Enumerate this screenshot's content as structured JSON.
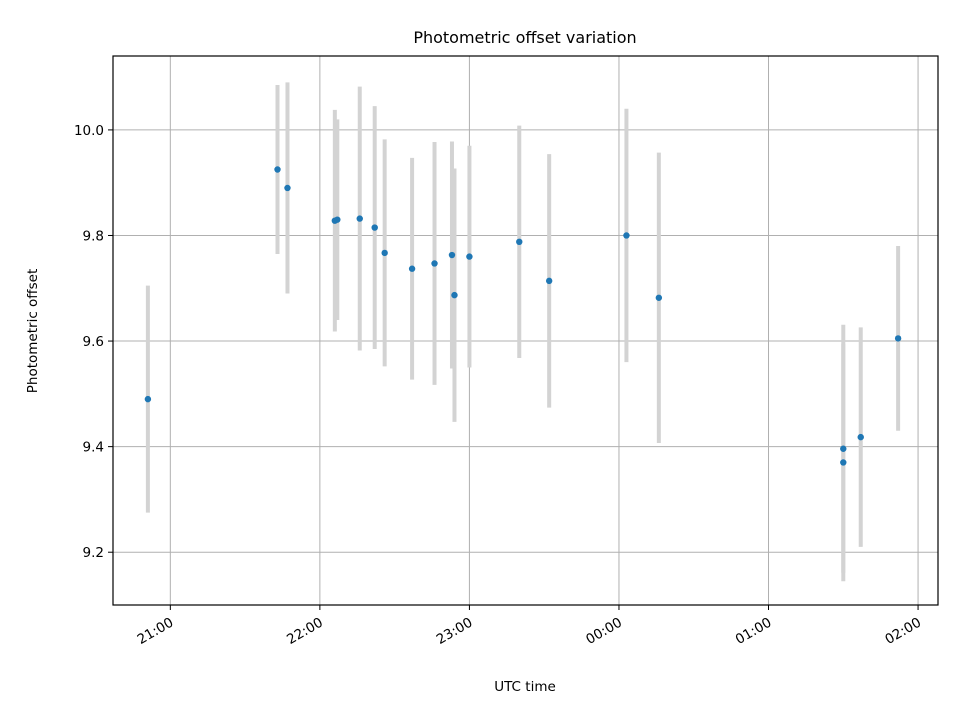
{
  "chart_data": {
    "type": "scatter",
    "title": "Photometric offset variation",
    "xlabel": "UTC time",
    "ylabel": "Photometric offset",
    "x_ticks": [
      "21:00",
      "22:00",
      "23:00",
      "00:00",
      "01:00",
      "02:00"
    ],
    "y_ticks": [
      "9.2",
      "9.4",
      "9.6",
      "9.8",
      "10.0"
    ],
    "xlim": [
      "20:37",
      "02:08"
    ],
    "ylim": [
      9.1,
      10.14
    ],
    "grid": true,
    "point_color": "#1f77b4",
    "errorbar_color": "#d3d3d3",
    "points": [
      {
        "x": "20:51",
        "y": 9.49,
        "err": 0.215
      },
      {
        "x": "21:43",
        "y": 9.925,
        "err": 0.16
      },
      {
        "x": "21:47",
        "y": 9.89,
        "err": 0.2
      },
      {
        "x": "22:06",
        "y": 9.828,
        "err": 0.21
      },
      {
        "x": "22:07",
        "y": 9.83,
        "err": 0.19
      },
      {
        "x": "22:16",
        "y": 9.832,
        "err": 0.25
      },
      {
        "x": "22:22",
        "y": 9.815,
        "err": 0.23
      },
      {
        "x": "22:26",
        "y": 9.767,
        "err": 0.215
      },
      {
        "x": "22:37",
        "y": 9.737,
        "err": 0.21
      },
      {
        "x": "22:46",
        "y": 9.747,
        "err": 0.23
      },
      {
        "x": "22:53",
        "y": 9.763,
        "err": 0.215
      },
      {
        "x": "22:54",
        "y": 9.687,
        "err": 0.24
      },
      {
        "x": "23:00",
        "y": 9.76,
        "err": 0.21
      },
      {
        "x": "23:20",
        "y": 9.788,
        "err": 0.22
      },
      {
        "x": "23:32",
        "y": 9.714,
        "err": 0.24
      },
      {
        "x": "00:03",
        "y": 9.8,
        "err": 0.24
      },
      {
        "x": "00:16",
        "y": 9.682,
        "err": 0.275
      },
      {
        "x": "01:30",
        "y": 9.396,
        "err": 0.235
      },
      {
        "x": "01:30",
        "y": 9.37,
        "err": 0.225
      },
      {
        "x": "01:37",
        "y": 9.418,
        "err": 0.208
      },
      {
        "x": "01:52",
        "y": 9.605,
        "err": 0.175
      }
    ]
  }
}
